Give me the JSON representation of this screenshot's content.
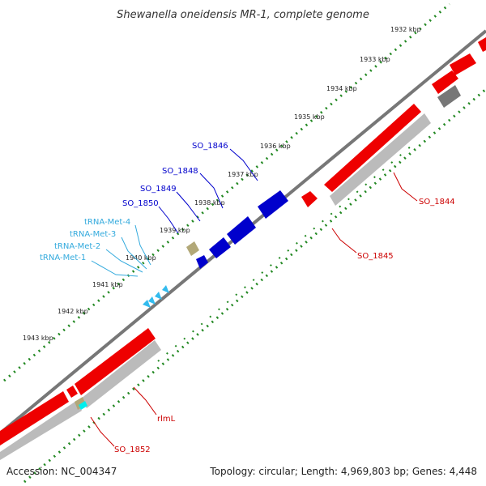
{
  "title": "Shewanella oneidensis MR-1, complete genome",
  "footer": {
    "accession": "Accession: NC_004347",
    "topology": "Topology: circular; Length: 4,969,803 bp; Genes: 4,448"
  },
  "ticks": [
    "1932 kbp",
    "1933 kbp",
    "1934 kbp",
    "1935 kbp",
    "1936 kbp",
    "1937 kbp",
    "1938 kbp",
    "1939 kbp",
    "1940 kbp",
    "1941 kbp",
    "1942 kbp",
    "1943 kbp"
  ],
  "gene_labels": {
    "so_1846": "SO_1846",
    "so_1848": "SO_1848",
    "so_1849": "SO_1849",
    "so_1850": "SO_1850",
    "trna_met_4": "tRNA-Met-4",
    "trna_met_3": "tRNA-Met-3",
    "trna_met_2": "tRNA-Met-2",
    "trna_met_1": "tRNA-Met-1",
    "so_1844": "SO_1844",
    "so_1845": "SO_1845",
    "rlml": "rlmL",
    "so_1852": "SO_1852"
  },
  "colors": {
    "forward_gene": "#0000cc",
    "reverse_gene": "#ee0000",
    "cds_shadow": "#bbbbbb",
    "trna": "#33bbee",
    "backbone": "#777777",
    "gc_dots": "#228822",
    "forward_label": "#0000cc",
    "trna_label": "#33aadd",
    "reverse_label": "#cc0000"
  }
}
